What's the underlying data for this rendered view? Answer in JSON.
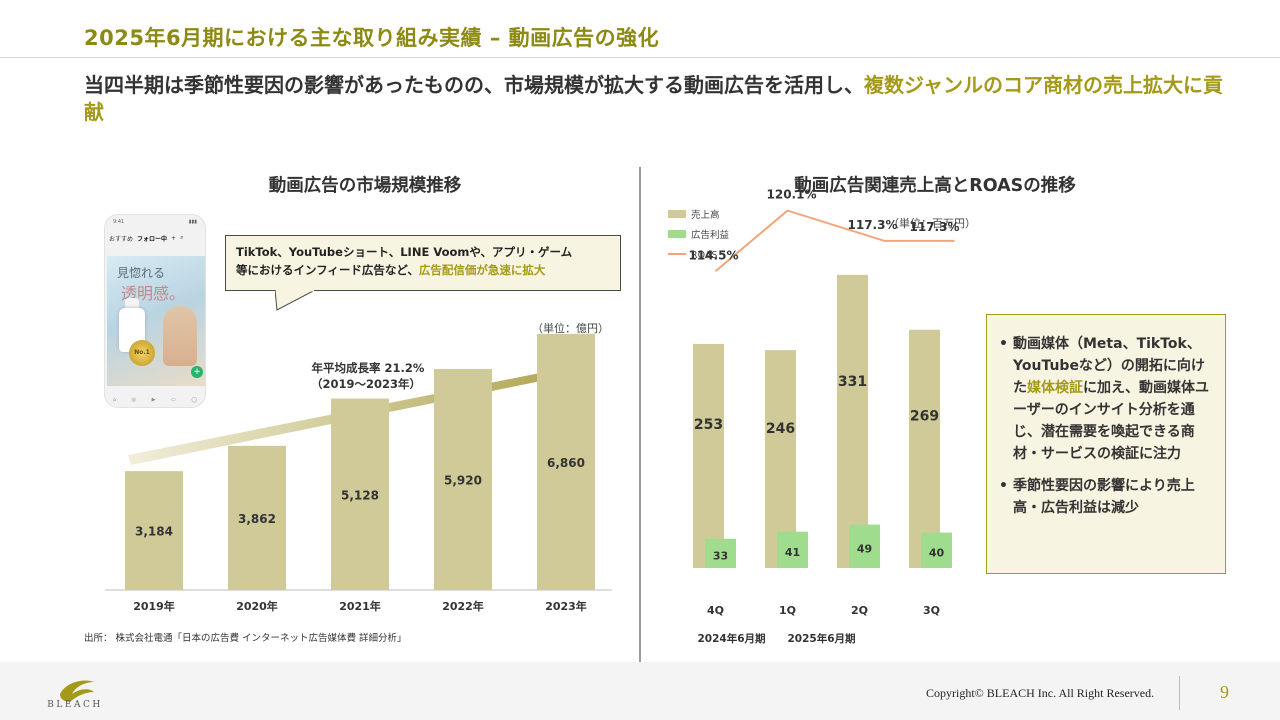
{
  "page": {
    "title": "2025年6月期における主な取り組み実績 – 動画広告の強化",
    "headline_main": "当四半期は季節性要因の影響があったものの、市場規模が拡大する動画広告を活用し、",
    "headline_highlight": "複数ジャンルのコア商材の売上拡大に貢献"
  },
  "left": {
    "section_title": "動画広告の市場規模推移",
    "unit": "（単位：億円）",
    "callout_line1": "TikTok、YouTubeショート、LINE Voomや、アプリ・ゲーム",
    "callout_line2_a": "等におけるインフィード広告など、",
    "callout_line2_hl": "広告配信価が急速に拡大",
    "cagr_line1": "年平均成長率 21.2%",
    "cagr_line2": "（2019〜2023年）",
    "source": "出所： 株式会社電通「日本の広告費 インターネット広告媒体費 詳細分析」",
    "phone": {
      "time": "9:41",
      "tab1": "おすすめ",
      "tab2": "フォロー中",
      "copy1": "見惚れる",
      "copy2": "透明感。",
      "badge": "No.1"
    }
  },
  "right": {
    "section_title": "動画広告関連売上高とROASの推移",
    "unit": "（単位：百万円）",
    "bullet1_a": "動画媒体（Meta、TikTok、YouTubeなど）の開拓に向けた",
    "bullet1_hl": "媒体検証",
    "bullet1_b": "に加え、動画媒体ユーザーのインサイト分析を通じ、潜在需要を喚起できる商材・サービスの検証に注力",
    "bullet2": "季節性要因の影響により売上高・広告利益は減少",
    "bullet_mark": "•"
  },
  "footer": {
    "copyright": "Copyright© BLEACH Inc. All Right Reserved.",
    "page_number": "9",
    "logo_text": "BLEACH"
  },
  "colors": {
    "accent": "#a49a18",
    "bar_gold": "#cfca98",
    "bar_green": "#9fdc8e",
    "roas_line": "#f2a57a"
  },
  "chart_data": [
    {
      "type": "bar",
      "title": "動画広告の市場規模推移",
      "categories": [
        "2019年",
        "2020年",
        "2021年",
        "2022年",
        "2023年"
      ],
      "values": [
        3184,
        3862,
        5128,
        5920,
        6860
      ],
      "labels": [
        "3,184",
        "3,862",
        "5,128",
        "5,920",
        "6,860"
      ],
      "unit": "（単位：億円）",
      "annotation": "年平均成長率 21.2%（2019〜2023年）",
      "ylim": [
        0,
        7500
      ],
      "grid": false
    },
    {
      "type": "bar",
      "title": "動画広告関連売上高とROASの推移",
      "categories": [
        "4Q",
        "1Q",
        "2Q",
        "3Q"
      ],
      "period_labels": [
        {
          "text": "2024年6月期",
          "category_index": 0
        },
        {
          "text": "2025年6月期",
          "category_index": 1
        }
      ],
      "series": [
        {
          "name": "売上高",
          "type": "bar",
          "values": [
            253,
            246,
            331,
            269
          ]
        },
        {
          "name": "広告利益",
          "type": "bar",
          "values": [
            33,
            41,
            49,
            40
          ]
        },
        {
          "name": "ROAS",
          "type": "line",
          "values": [
            114.5,
            120.1,
            117.3,
            117.3
          ],
          "labels": [
            "114.5%",
            "120.1%",
            "117.3%",
            "117.3%"
          ]
        }
      ],
      "unit": "（単位：百万円）",
      "legend": "top-left",
      "ylim": [
        0,
        350
      ],
      "roas_ylim": [
        110,
        122
      ],
      "grid": false
    }
  ]
}
